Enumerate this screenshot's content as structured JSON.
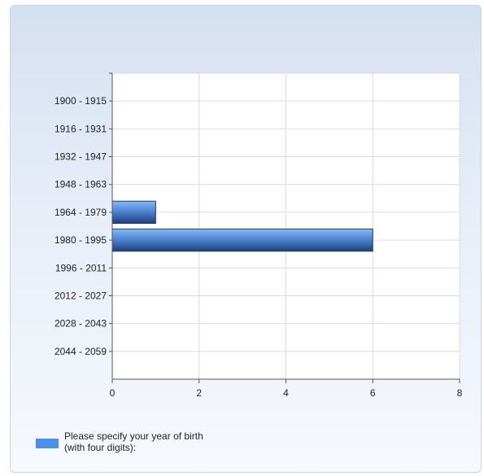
{
  "chart_data": {
    "type": "bar",
    "orientation": "horizontal",
    "categories": [
      "1900 - 1915",
      "1916 - 1931",
      "1932 - 1947",
      "1948 - 1963",
      "1964 - 1979",
      "1980 - 1995",
      "1996 - 2011",
      "2012 - 2027",
      "2028 - 2043",
      "2044 - 2059"
    ],
    "series": [
      {
        "name": "Please specify your year of birth (with four digits):",
        "values": [
          0,
          0,
          0,
          0,
          1,
          6,
          0,
          0,
          0,
          0
        ],
        "color": "#4a8fe8"
      }
    ],
    "xlim": [
      0,
      8
    ],
    "xticks": [
      0,
      2,
      4,
      6,
      8
    ],
    "grid": true,
    "legend_position": "bottom-left"
  }
}
